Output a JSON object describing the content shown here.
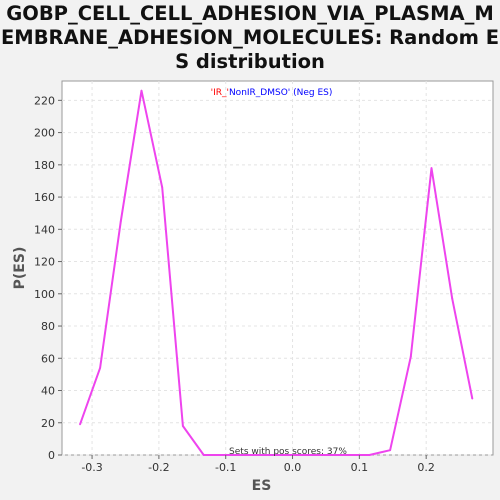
{
  "chart_data": {
    "type": "line",
    "title": "GOBP_CELL_CELL_ADHESION_VIA_PLASMA_MEMBRANE_ADHESION_MOLECULES: Random ES distribution",
    "xlabel": "ES",
    "ylabel": "P(ES)",
    "xlim": [
      -0.345,
      0.3
    ],
    "ylim": [
      0,
      232
    ],
    "xticks": [
      -0.3,
      -0.2,
      -0.1,
      0.0,
      0.1,
      0.2
    ],
    "xtick_labels": [
      "-0.3",
      "-0.2",
      "-0.1",
      "0.0",
      "0.1",
      "0.2"
    ],
    "yticks": [
      0,
      20,
      40,
      60,
      80,
      100,
      120,
      140,
      160,
      180,
      200,
      220
    ],
    "ytick_labels": [
      "0",
      "20",
      "40",
      "60",
      "80",
      "100",
      "120",
      "140",
      "160",
      "180",
      "200",
      "220"
    ],
    "grid": true,
    "legend": {
      "placement": "top-center",
      "parts": [
        {
          "text": "'IR_'",
          "color": "#ff0000"
        },
        {
          "text": "NonIR_DMSO' (Neg ES)",
          "color": "#0000ff"
        }
      ]
    },
    "annotation": "Sets with pos scores: 37%",
    "series": [
      {
        "color": "#ee44ee",
        "x": [
          -0.318,
          -0.288,
          -0.257,
          -0.226,
          -0.195,
          -0.164,
          -0.133,
          -0.102,
          -0.071,
          -0.04,
          -0.009,
          0.022,
          0.053,
          0.084,
          0.115,
          0.146,
          0.177,
          0.208,
          0.239,
          0.269
        ],
        "y": [
          19,
          54,
          145,
          226,
          166,
          18,
          0,
          0,
          0,
          0,
          0,
          0,
          0,
          0,
          0,
          3,
          61,
          178,
          97,
          35
        ]
      }
    ]
  }
}
